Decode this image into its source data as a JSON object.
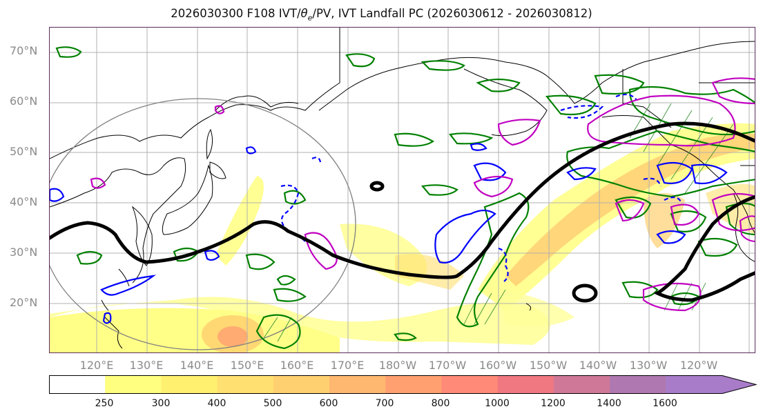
{
  "title": {
    "pre": "2026030300 F108 IVT/",
    "theta_symbol": "θ",
    "theta_sub": "e",
    "post": "/PV, IVT Landfall PC (2026030612 - 2026030812)"
  },
  "map": {
    "lat_labels": [
      "70°N",
      "60°N",
      "50°N",
      "40°N",
      "30°N",
      "20°N"
    ],
    "lon_labels": [
      "120°E",
      "130°E",
      "140°E",
      "150°E",
      "160°E",
      "170°E",
      "180°W",
      "170°W",
      "160°W",
      "150°W",
      "140°W",
      "130°W",
      "120°W"
    ],
    "colors": {
      "ivt_pc_line": "#000000",
      "green_contour": "#008000",
      "blue_contour": "#0000ff",
      "magenta_contour": "#c000c0",
      "coastline": "#000000",
      "gridline": "#b0b0b0",
      "circle": "#808080"
    }
  },
  "colorbar": {
    "ticks": [
      "250",
      "300",
      "400",
      "500",
      "600",
      "700",
      "800",
      "1000",
      "1200",
      "1400",
      "1600"
    ],
    "colors": [
      "#ffffff",
      "#ffff80",
      "#fff070",
      "#ffe070",
      "#ffd070",
      "#ffb870",
      "#ffa070",
      "#ff8a78",
      "#f07880",
      "#d07898",
      "#b078b0",
      "#a87cc8"
    ]
  }
}
